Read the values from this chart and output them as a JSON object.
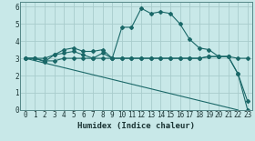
{
  "xlabel": "Humidex (Indice chaleur)",
  "bg_color": "#c8e8e8",
  "grid_color": "#a8cccc",
  "line_color": "#1a6868",
  "xlim": [
    -0.5,
    23.5
  ],
  "ylim": [
    0,
    6.3
  ],
  "xticks": [
    0,
    1,
    2,
    3,
    4,
    5,
    6,
    7,
    8,
    9,
    10,
    11,
    12,
    13,
    14,
    15,
    16,
    17,
    18,
    19,
    20,
    21,
    22,
    23
  ],
  "yticks": [
    0,
    1,
    2,
    3,
    4,
    5,
    6
  ],
  "lines_with_markers": [
    {
      "x": [
        0,
        1,
        2,
        3,
        4,
        5,
        6,
        7,
        8,
        9,
        10,
        11,
        12,
        13,
        14,
        15,
        16,
        17,
        18,
        19,
        20,
        21,
        22,
        23
      ],
      "y": [
        3.0,
        3.0,
        2.8,
        3.2,
        3.3,
        3.4,
        3.2,
        3.0,
        3.3,
        3.0,
        3.0,
        3.0,
        3.0,
        3.0,
        3.0,
        3.0,
        3.0,
        3.0,
        3.0,
        3.1,
        3.1,
        3.1,
        3.0,
        3.0
      ]
    },
    {
      "x": [
        0,
        1,
        2,
        3,
        4,
        5,
        6,
        7,
        8,
        9,
        10,
        11,
        12,
        13,
        14,
        15,
        16,
        17,
        18,
        19,
        20,
        21,
        22,
        23
      ],
      "y": [
        3.0,
        3.0,
        3.0,
        3.2,
        3.5,
        3.6,
        3.4,
        3.4,
        3.5,
        3.0,
        4.8,
        4.8,
        5.9,
        5.6,
        5.7,
        5.6,
        5.0,
        4.1,
        3.6,
        3.5,
        3.1,
        3.1,
        2.1,
        0.5
      ]
    },
    {
      "x": [
        0,
        1,
        2,
        3,
        4,
        5,
        6,
        7,
        8,
        9,
        10,
        11,
        12,
        13,
        14,
        15,
        16,
        17,
        18,
        19,
        20,
        21,
        22,
        23
      ],
      "y": [
        3.0,
        3.0,
        2.85,
        2.85,
        3.0,
        3.0,
        3.0,
        3.0,
        3.0,
        3.0,
        3.0,
        3.0,
        3.0,
        3.0,
        3.0,
        3.0,
        3.0,
        3.0,
        3.0,
        3.1,
        3.1,
        3.1,
        2.1,
        0.0
      ]
    }
  ],
  "diagonal_line": {
    "x": [
      0,
      22
    ],
    "y": [
      3.0,
      0.0
    ]
  }
}
